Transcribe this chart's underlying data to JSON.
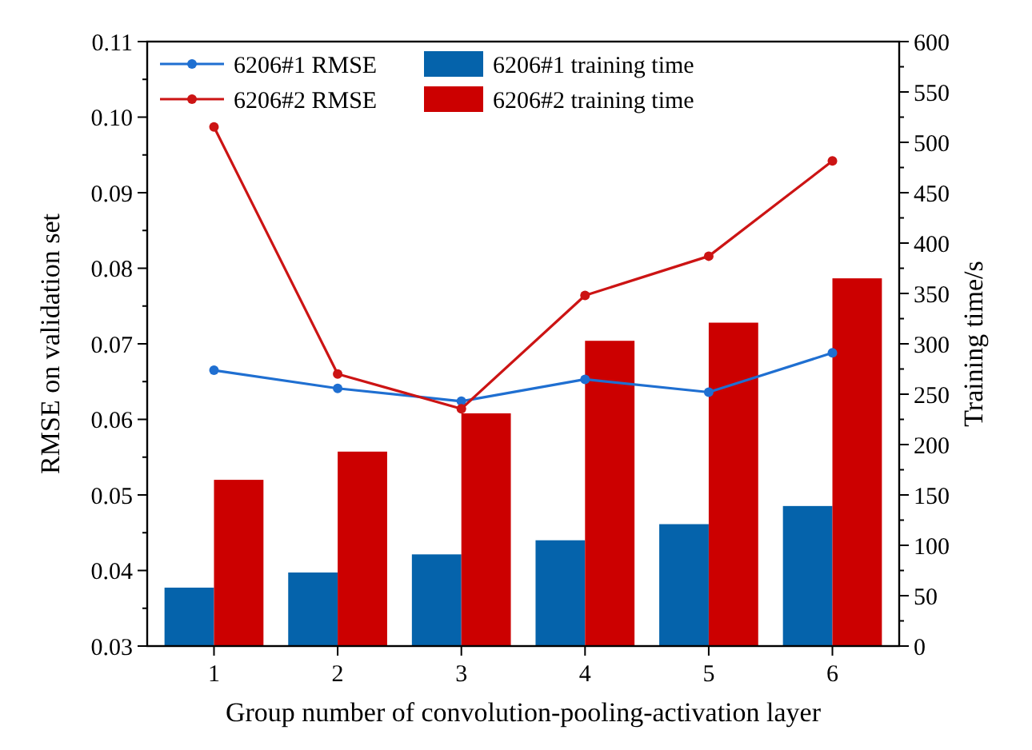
{
  "chart_data": {
    "type": "bar",
    "xlabel": "Group number of convolution-pooling-activation layer",
    "ylabel": "RMSE on validation set",
    "y2label": "Training time/s",
    "categories": [
      "1",
      "2",
      "3",
      "4",
      "5",
      "6"
    ],
    "series": [
      {
        "name": "6206#1 RMSE",
        "type": "line",
        "color": "#1f6fd1",
        "values": [
          0.0665,
          0.0641,
          0.0624,
          0.0653,
          0.0636,
          0.0688
        ]
      },
      {
        "name": "6206#2 RMSE",
        "type": "line",
        "color": "#cc1414",
        "values": [
          0.0987,
          0.066,
          0.0614,
          0.0764,
          0.0816,
          0.0942
        ]
      },
      {
        "name": "6206#1 training time",
        "axis": "y2",
        "color": "#0563ab",
        "values": [
          58,
          73,
          91,
          105,
          121,
          139
        ]
      },
      {
        "name": "6206#2 training time",
        "axis": "y2",
        "color": "#cc0000",
        "values": [
          165,
          193,
          231,
          303,
          321,
          365
        ]
      }
    ],
    "ylim": [
      0.03,
      0.11
    ],
    "yticks": [
      {
        "value": 0.03,
        "label": "0.03"
      },
      {
        "value": 0.035,
        "label": null
      },
      {
        "value": 0.04,
        "label": "0.04"
      },
      {
        "value": 0.045,
        "label": null
      },
      {
        "value": 0.05,
        "label": "0.05"
      },
      {
        "value": 0.055,
        "label": null
      },
      {
        "value": 0.06,
        "label": "0.06"
      },
      {
        "value": 0.065,
        "label": null
      },
      {
        "value": 0.07,
        "label": "0.07"
      },
      {
        "value": 0.075,
        "label": null
      },
      {
        "value": 0.08,
        "label": "0.08"
      },
      {
        "value": 0.085,
        "label": null
      },
      {
        "value": 0.09,
        "label": "0.09"
      },
      {
        "value": 0.095,
        "label": null
      },
      {
        "value": 0.1,
        "label": "0.10"
      },
      {
        "value": 0.105,
        "label": null
      },
      {
        "value": 0.11,
        "label": "0.11"
      }
    ],
    "y2lim": [
      0,
      600
    ],
    "y2ticks": [
      0,
      {
        "value": 25,
        "label": null
      },
      50,
      {
        "value": 75,
        "label": null
      },
      100,
      {
        "value": 125,
        "label": null
      },
      150,
      {
        "value": 175,
        "label": null
      },
      200,
      {
        "value": 225,
        "label": null
      },
      250,
      {
        "value": 275,
        "label": null
      },
      300,
      {
        "value": 325,
        "label": null
      },
      350,
      {
        "value": 375,
        "label": null
      },
      400,
      {
        "value": 425,
        "label": null
      },
      450,
      {
        "value": 475,
        "label": null
      },
      500,
      {
        "value": 525,
        "label": null
      },
      550,
      {
        "value": 575,
        "label": null
      },
      600
    ],
    "marker": "circle",
    "legend": "top",
    "grid": false
  }
}
